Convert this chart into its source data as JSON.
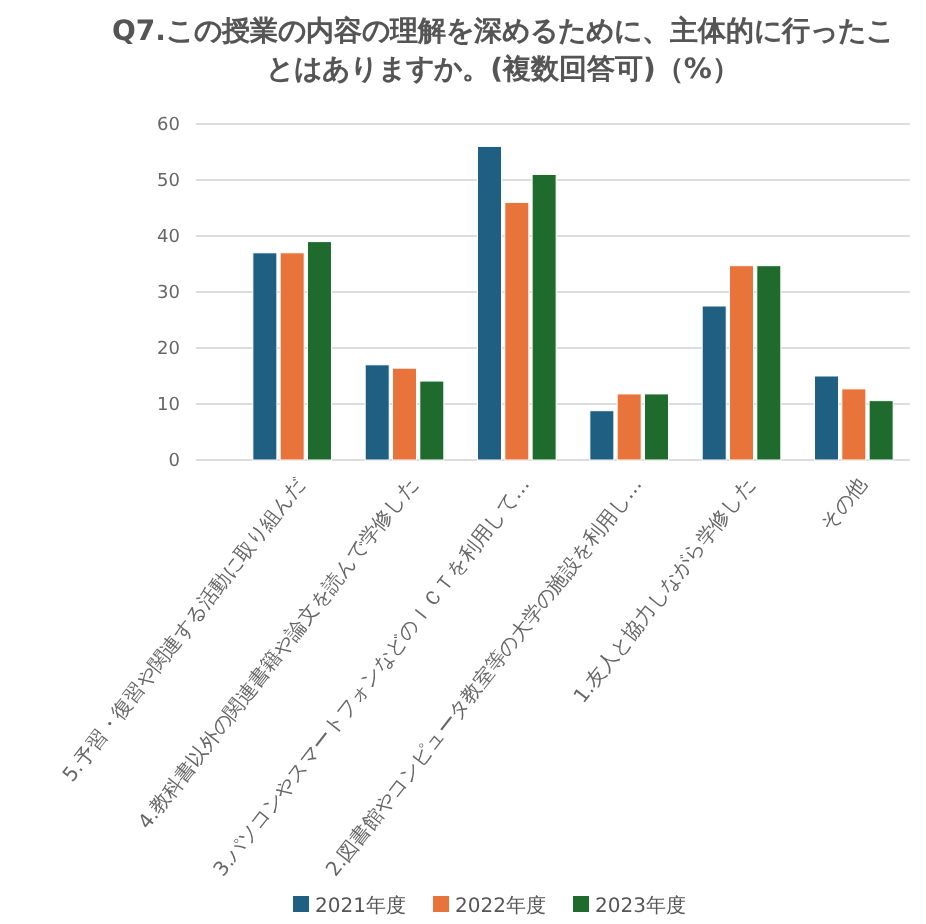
{
  "chart_data": {
    "type": "bar",
    "title": "Q7.この授業の内容の理解を深めるために、主体的に行ったことはありますか。(複数回答可)（%）",
    "categories": [
      "5.予習・復習や関連する活動に取り組んだ",
      "4.教科書以外の関連書籍や論文を読んで学修した",
      "3.パソコンやスマートフォンなどのＩＣＴを利用して…",
      "2.図書館やコンピュータ教室等の大学の施設を利用し…",
      "1.友人と協力しながら学修した",
      "その他"
    ],
    "series": [
      {
        "name": "2021年度",
        "color": "#1f5f82",
        "values": [
          37,
          17,
          56,
          8.8,
          27.5,
          15
        ]
      },
      {
        "name": "2022年度",
        "color": "#e8743b",
        "values": [
          37,
          16.4,
          46,
          11.8,
          34.7,
          12.7
        ]
      },
      {
        "name": "2023年度",
        "color": "#1f6b2e",
        "values": [
          39,
          14.1,
          51,
          11.8,
          34.7,
          10.6
        ]
      }
    ],
    "ylim": [
      0,
      60
    ],
    "yticks": [
      0,
      10,
      20,
      30,
      40,
      50,
      60
    ],
    "grid": "y",
    "legend": "bottom"
  }
}
